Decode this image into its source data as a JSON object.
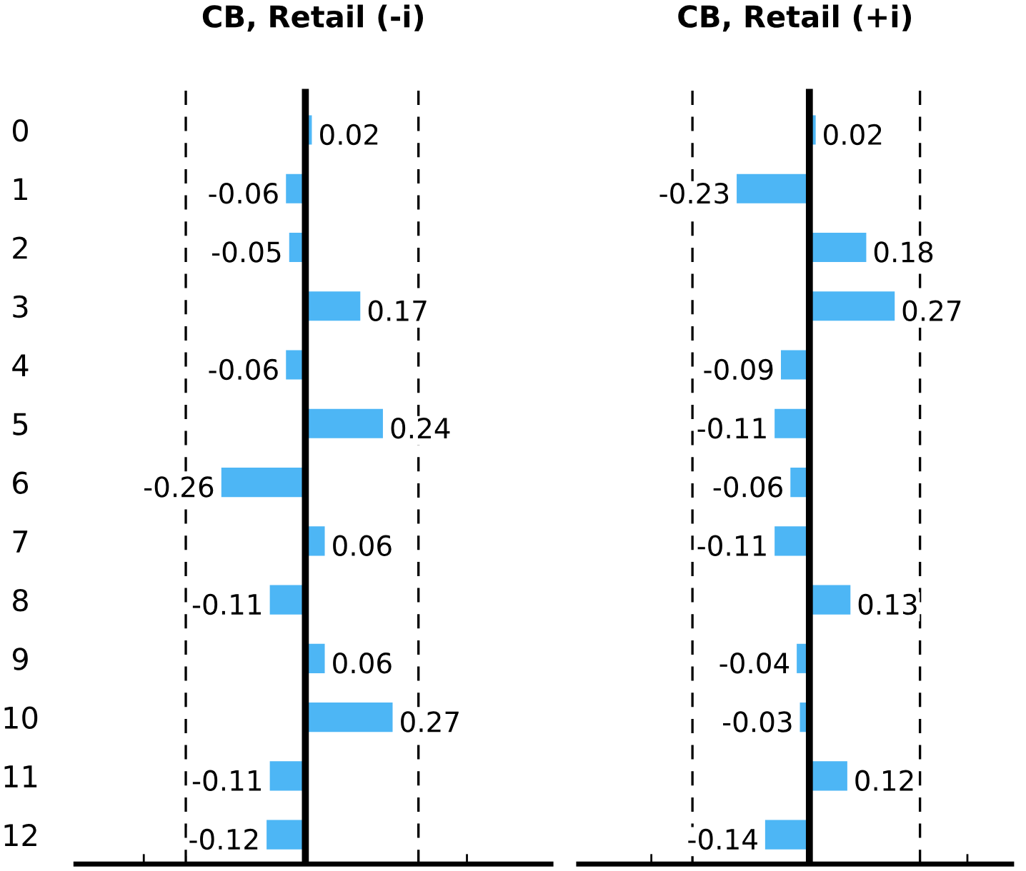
{
  "chart_data": [
    {
      "type": "bar",
      "orientation": "horizontal",
      "title": "CB, Retail (-i)",
      "categories": [
        "0",
        "1",
        "2",
        "3",
        "4",
        "5",
        "6",
        "7",
        "8",
        "9",
        "10",
        "11",
        "12"
      ],
      "values": [
        0.02,
        -0.06,
        -0.05,
        0.17,
        -0.06,
        0.24,
        -0.26,
        0.06,
        -0.11,
        0.06,
        0.27,
        -0.11,
        -0.12
      ],
      "color": "#4db6f5",
      "data_labels": true,
      "xlim": [
        -0.71,
        0.76
      ],
      "xticks": [
        {
          "value": -0.5,
          "label": null
        },
        {
          "value": 0,
          "label": null
        },
        {
          "value": 0.5,
          "label": null
        }
      ],
      "tick_labels": "y",
      "grid": false,
      "legend": false,
      "ref_lines": [
        {
          "axis": "x",
          "value": 0,
          "color": "#000000",
          "line_style": "solid"
        },
        {
          "axis": "x",
          "value": -0.37,
          "color": "#000000",
          "line_style": "dashed"
        },
        {
          "axis": "x",
          "value": 0.35,
          "color": "#000000",
          "line_style": "dashed"
        }
      ]
    },
    {
      "type": "bar",
      "orientation": "horizontal",
      "title": "CB, Retail (+i)",
      "categories": [
        "0",
        "1",
        "2",
        "3",
        "4",
        "5",
        "6",
        "7",
        "8",
        "9",
        "10",
        "11",
        "12"
      ],
      "values": [
        0.02,
        -0.23,
        0.18,
        0.27,
        -0.09,
        -0.11,
        -0.06,
        -0.11,
        0.13,
        -0.04,
        -0.03,
        0.12,
        -0.14
      ],
      "color": "#4db6f5",
      "data_labels": true,
      "xlim": [
        -0.73,
        0.64
      ],
      "xticks": [
        {
          "value": -0.5,
          "label": null
        },
        {
          "value": 0,
          "label": null
        },
        {
          "value": 0.5,
          "label": null
        }
      ],
      "tick_labels": false,
      "grid": false,
      "legend": false,
      "ref_lines": [
        {
          "axis": "x",
          "value": 0,
          "color": "#000000",
          "line_style": "solid"
        },
        {
          "axis": "x",
          "value": -0.37,
          "color": "#000000",
          "line_style": "dashed"
        },
        {
          "axis": "x",
          "value": 0.35,
          "color": "#000000",
          "line_style": "dashed"
        }
      ]
    }
  ]
}
